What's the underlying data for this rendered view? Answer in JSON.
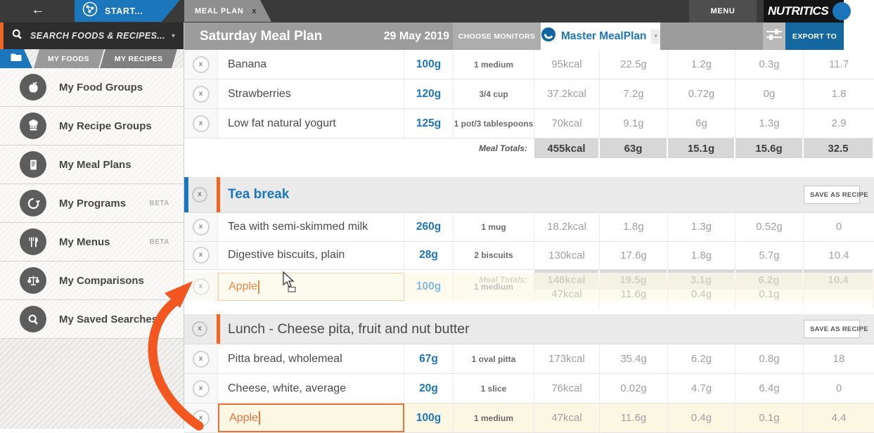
{
  "topbar": {
    "start_label": "START...",
    "tab_label": "MEAL PLAN",
    "tab_close": "x",
    "menu_label": "MENU",
    "brand": "NUTRITICS"
  },
  "sidebar": {
    "search_placeholder": "SEARCH FOODS & RECIPES...",
    "tabs": [
      "MY FOODS",
      "MY RECIPES"
    ],
    "items": [
      {
        "label": "My Food Groups",
        "icon": "apple-icon",
        "badge": ""
      },
      {
        "label": "My Recipe Groups",
        "icon": "chef-hat-icon",
        "badge": ""
      },
      {
        "label": "My Meal Plans",
        "icon": "meal-plan-icon",
        "badge": ""
      },
      {
        "label": "My Programs",
        "icon": "program-sync-icon",
        "badge": "BETA"
      },
      {
        "label": "My Menus",
        "icon": "cutlery-icon",
        "badge": "BETA"
      },
      {
        "label": "My Comparisons",
        "icon": "scales-icon",
        "badge": ""
      },
      {
        "label": "My Saved Searches",
        "icon": "search-icon",
        "badge": ""
      }
    ]
  },
  "header": {
    "title": "Saturday Meal Plan",
    "date": "29 May 2019",
    "choose_monitors": "CHOOSE MONITORS",
    "selector": "Master MealPlan",
    "export": "EXPORT TO"
  },
  "table": {
    "remove_glyph": "x",
    "totals_label": "Meal Totals:",
    "save_as_recipe": "SAVE AS RECIPE",
    "sections": [
      {
        "rows": [
          {
            "name": "Banana",
            "amount": "100g",
            "portion": "1 medium",
            "values": [
              "95kcal",
              "22.5g",
              "1.2g",
              "0.3g",
              "11.7"
            ]
          },
          {
            "name": "Strawberries",
            "amount": "120g",
            "portion": "3/4 cup",
            "values": [
              "37.2kcal",
              "7.2g",
              "0.72g",
              "0g",
              "1.8"
            ]
          },
          {
            "name": "Low fat natural yogurt",
            "amount": "125g",
            "portion": "1 pot/3 tablespoons",
            "values": [
              "70kcal",
              "9.1g",
              "6g",
              "1.3g",
              "2.9"
            ]
          }
        ],
        "totals": [
          "455kcal",
          "63g",
          "15.1g",
          "15.6g",
          "32.5"
        ]
      },
      {
        "title": "Tea break",
        "title_style": "blue",
        "selected": true,
        "rows": [
          {
            "name": "Tea with semi-skimmed milk",
            "amount": "260g",
            "portion": "1 mug",
            "values": [
              "18.2kcal",
              "1.8g",
              "1.3g",
              "0.52g",
              "0"
            ]
          },
          {
            "name": "Digestive biscuits, plain",
            "amount": "28g",
            "portion": "2 biscuits",
            "values": [
              "130kcal",
              "17.6g",
              "1.8g",
              "5.7g",
              "10.4"
            ]
          }
        ],
        "totals": [
          "148kcal",
          "19.5g",
          "3.1g",
          "6.2g",
          "10.4"
        ]
      },
      {
        "title": "Lunch - Cheese pita, fruit and nut butter",
        "title_style": "dark",
        "rows": [
          {
            "name": "Pitta bread, wholemeal",
            "amount": "67g",
            "portion": "1 oval pitta",
            "values": [
              "173kcal",
              "35.4g",
              "6.2g",
              "0.8g",
              "18"
            ]
          },
          {
            "name": "Cheese, white, average",
            "amount": "20g",
            "portion": "1 slice",
            "values": [
              "76kcal",
              "0.02g",
              "4.7g",
              "6.4g",
              "0"
            ]
          },
          {
            "name": "Apple",
            "amount": "100g",
            "portion": "1 medium",
            "values": [
              "47kcal",
              "11.6g",
              "0.4g",
              "0.1g",
              "4.4"
            ],
            "editing": true
          }
        ]
      }
    ],
    "ghost_row": {
      "name": "Apple",
      "amount": "100g",
      "portion": "1 medium",
      "values": [
        "47kcal",
        "11.6g",
        "0.4g",
        "0.1g",
        ""
      ]
    }
  },
  "colors": {
    "brand_blue": "#1b76bc",
    "accent_orange": "#f26522",
    "export_blue": "#15689f",
    "annotation_arrow": "#f2571f"
  }
}
